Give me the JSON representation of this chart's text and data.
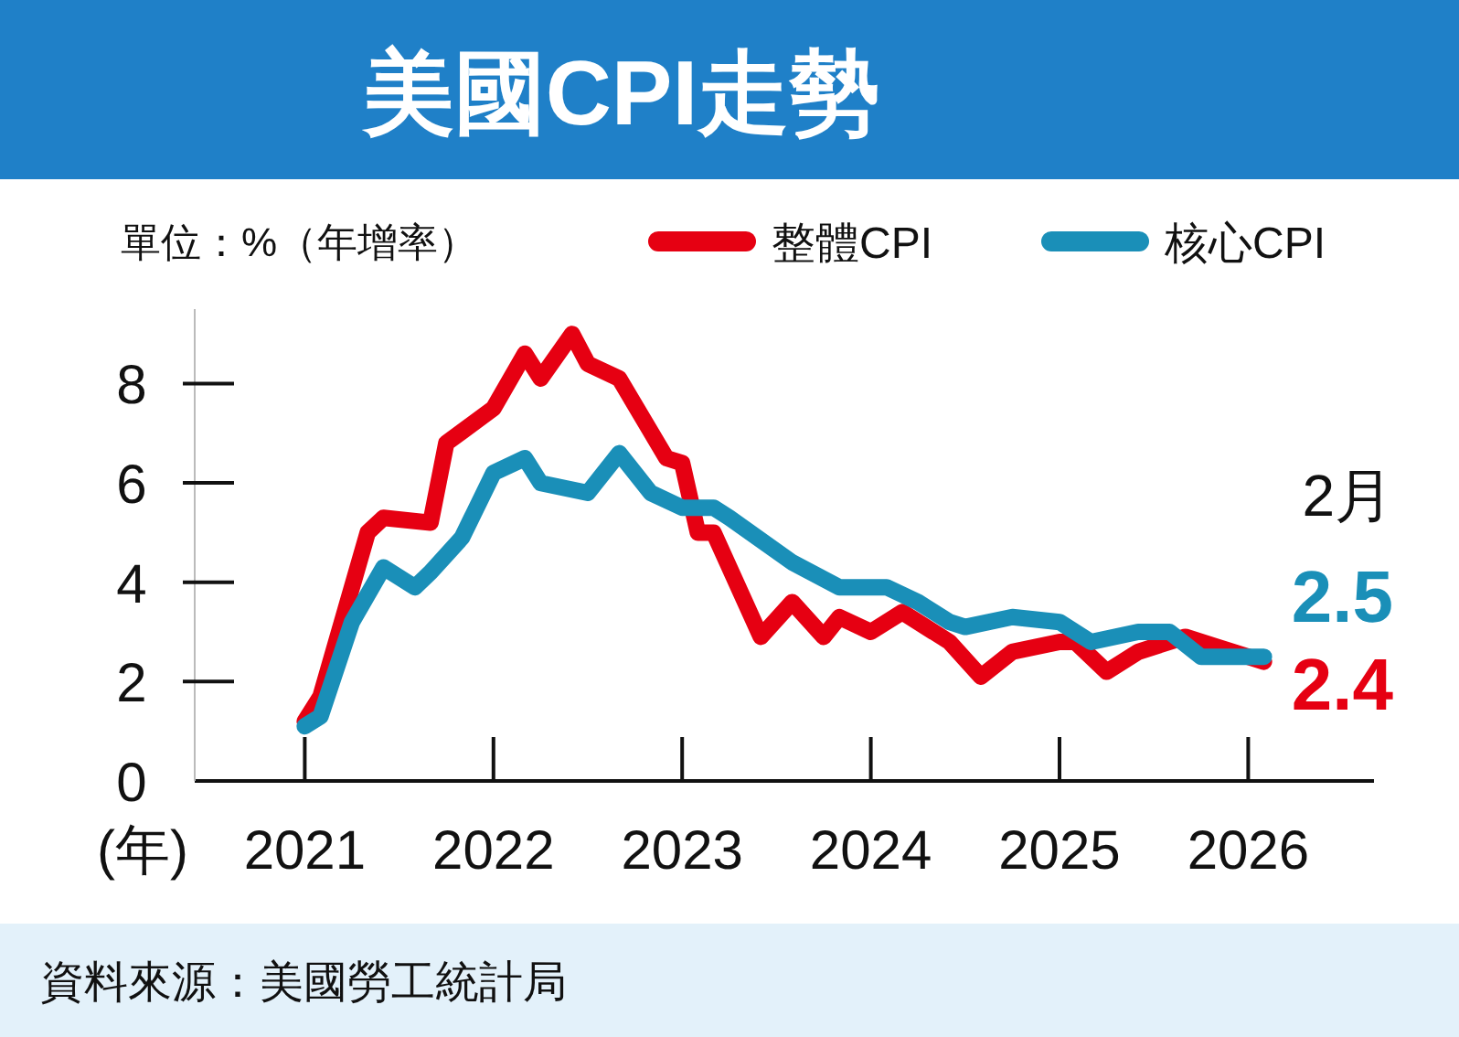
{
  "chart_data": {
    "type": "line",
    "title": "美國CPI走勢",
    "ylabel": "單位：%（年增率）",
    "xlabel": "(年)",
    "xlim": [
      "2020-06",
      "2026-09"
    ],
    "xticks": [
      {
        "value": "2021-01",
        "label": "2021"
      },
      {
        "value": "2022-01",
        "label": "2022"
      },
      {
        "value": "2023-01",
        "label": "2023"
      },
      {
        "value": "2024-01",
        "label": "2024"
      },
      {
        "value": "2025-01",
        "label": "2025"
      },
      {
        "value": "2026-01",
        "label": "2026"
      }
    ],
    "ylim": [
      0,
      9.5
    ],
    "yticks": [
      0,
      2,
      4,
      6,
      8
    ],
    "legend": "top",
    "grid": false,
    "line_style": "solid",
    "series": [
      {
        "name": "整體CPI",
        "color": "#e60012",
        "x": [
          "2021-01",
          "2021-02",
          "2021-05",
          "2021-06",
          "2021-09",
          "2021-10",
          "2022-01",
          "2022-03",
          "2022-04",
          "2022-06",
          "2022-07",
          "2022-09",
          "2022-12",
          "2023-01",
          "2023-02",
          "2023-03",
          "2023-06",
          "2023-08",
          "2023-10",
          "2023-11",
          "2024-01",
          "2024-03",
          "2024-06",
          "2024-08",
          "2024-10",
          "2025-01",
          "2025-02",
          "2025-04",
          "2025-06",
          "2025-09",
          "2025-11",
          "2026-02"
        ],
        "values": [
          1.2,
          1.7,
          5.0,
          5.3,
          5.2,
          6.8,
          7.5,
          8.6,
          8.1,
          9.0,
          8.4,
          8.1,
          6.5,
          6.4,
          5.0,
          5.0,
          2.9,
          3.6,
          2.9,
          3.3,
          3.0,
          3.4,
          2.8,
          2.1,
          2.6,
          2.8,
          2.8,
          2.2,
          2.6,
          2.9,
          2.7,
          2.4
        ]
      },
      {
        "name": "核心CPI",
        "color": "#1a8fb8",
        "x": [
          "2021-01",
          "2021-02",
          "2021-04",
          "2021-06",
          "2021-08",
          "2021-09",
          "2021-11",
          "2022-01",
          "2022-03",
          "2022-04",
          "2022-07",
          "2022-09",
          "2022-11",
          "2023-01",
          "2023-03",
          "2023-04",
          "2023-08",
          "2023-11",
          "2024-02",
          "2024-04",
          "2024-06",
          "2024-07",
          "2024-10",
          "2025-01",
          "2025-03",
          "2025-06",
          "2025-08",
          "2025-10",
          "2026-02"
        ],
        "values": [
          1.1,
          1.3,
          3.2,
          4.3,
          3.9,
          4.2,
          4.9,
          6.2,
          6.5,
          6.0,
          5.8,
          6.6,
          5.8,
          5.5,
          5.5,
          5.3,
          4.4,
          3.9,
          3.9,
          3.6,
          3.2,
          3.1,
          3.3,
          3.2,
          2.8,
          3.0,
          3.0,
          2.5,
          2.5
        ]
      }
    ],
    "annotations": [
      "2月",
      "2.5",
      "2.4",
      "資料來源：美國勞工統計局"
    ]
  }
}
